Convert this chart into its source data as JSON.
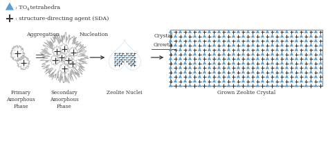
{
  "blue_color": "#5a9fd4",
  "dark_color": "#333333",
  "gray_color": "#aaaaaa",
  "stage_labels": [
    "Primary\nAmorphous\nPhase",
    "Secondary\nAmorphous\nPhase",
    "Zeolite Nuclei",
    "Grown Zeolite Crystal"
  ],
  "figsize": [
    4.74,
    2.11
  ],
  "dpi": 100,
  "legend_cross_label": ": structure-directing agent (SDA)",
  "legend_tri_text1": ": TO",
  "legend_tri_sub": "4",
  "legend_tri_text2": " tetrahedra",
  "agg_label": "Aggregation",
  "nuc_label": "Nucleation",
  "cryst_label1": "Crystal",
  "cryst_label2": "Growth",
  "axlim": [
    0,
    10,
    0,
    4.2
  ]
}
